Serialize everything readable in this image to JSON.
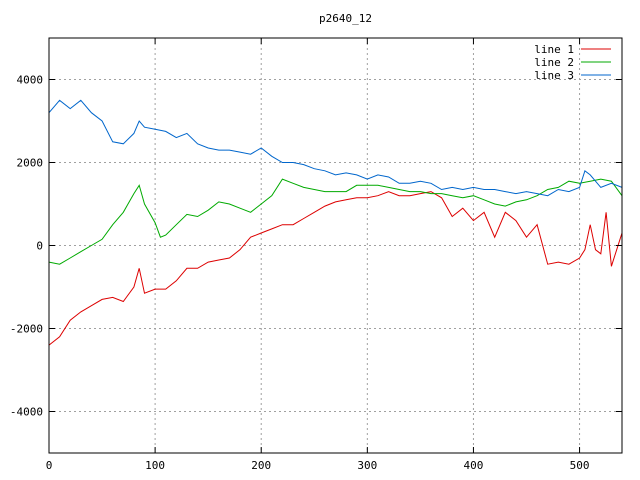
{
  "chart_data": {
    "type": "line",
    "title": "p2640_12",
    "xlabel": "",
    "ylabel": "",
    "xlim": [
      0,
      540
    ],
    "ylim": [
      -5000,
      5000
    ],
    "x_ticks": [
      0,
      100,
      200,
      300,
      400,
      500
    ],
    "x_tick_labels": [
      "0",
      "100",
      "200",
      "300",
      "400",
      "500"
    ],
    "y_ticks": [
      -4000,
      -2000,
      0,
      2000,
      4000
    ],
    "y_tick_labels": [
      "-4000",
      "-2000",
      "0",
      "2000",
      "4000"
    ],
    "grid": true,
    "legend_position": "top-right",
    "series": [
      {
        "name": "line 1",
        "color": "#dd0000",
        "x": [
          0,
          10,
          20,
          30,
          40,
          50,
          60,
          70,
          80,
          85,
          90,
          100,
          110,
          120,
          130,
          140,
          150,
          160,
          170,
          180,
          190,
          200,
          210,
          220,
          230,
          240,
          250,
          260,
          270,
          280,
          290,
          300,
          310,
          320,
          330,
          340,
          350,
          360,
          370,
          380,
          390,
          400,
          410,
          420,
          430,
          440,
          450,
          460,
          470,
          480,
          490,
          500,
          505,
          510,
          515,
          520,
          525,
          530,
          535,
          540
        ],
        "y": [
          -2400,
          -2200,
          -1800,
          -1600,
          -1450,
          -1300,
          -1250,
          -1350,
          -1000,
          -550,
          -1150,
          -1050,
          -1050,
          -850,
          -550,
          -550,
          -400,
          -350,
          -300,
          -100,
          200,
          300,
          400,
          500,
          500,
          650,
          800,
          950,
          1050,
          1100,
          1150,
          1150,
          1200,
          1300,
          1200,
          1200,
          1250,
          1300,
          1150,
          700,
          900,
          600,
          800,
          200,
          800,
          600,
          200,
          500,
          -450,
          -400,
          -450,
          -300,
          -100,
          500,
          -100,
          -200,
          800,
          -500,
          -100,
          300
        ]
      },
      {
        "name": "line 2",
        "color": "#00aa00",
        "x": [
          0,
          10,
          20,
          30,
          40,
          50,
          60,
          70,
          80,
          85,
          90,
          100,
          105,
          110,
          120,
          130,
          140,
          150,
          160,
          170,
          180,
          190,
          200,
          210,
          220,
          230,
          240,
          250,
          260,
          270,
          280,
          290,
          300,
          310,
          320,
          330,
          340,
          350,
          360,
          370,
          380,
          390,
          400,
          410,
          420,
          430,
          440,
          450,
          460,
          470,
          480,
          490,
          500,
          510,
          520,
          530,
          540
        ],
        "y": [
          -400,
          -450,
          -300,
          -150,
          0,
          150,
          500,
          800,
          1250,
          1450,
          1000,
          550,
          200,
          250,
          500,
          750,
          700,
          850,
          1050,
          1000,
          900,
          800,
          1000,
          1200,
          1600,
          1500,
          1400,
          1350,
          1300,
          1300,
          1300,
          1450,
          1450,
          1450,
          1400,
          1350,
          1300,
          1300,
          1250,
          1250,
          1200,
          1150,
          1200,
          1100,
          1000,
          950,
          1050,
          1100,
          1200,
          1350,
          1400,
          1550,
          1500,
          1550,
          1600,
          1550,
          1200
        ]
      },
      {
        "name": "line 3",
        "color": "#0066cc",
        "x": [
          0,
          10,
          20,
          30,
          40,
          50,
          60,
          70,
          80,
          85,
          90,
          100,
          110,
          120,
          130,
          140,
          150,
          160,
          170,
          180,
          190,
          200,
          210,
          220,
          230,
          240,
          250,
          260,
          270,
          280,
          290,
          300,
          310,
          320,
          330,
          340,
          350,
          360,
          370,
          380,
          390,
          400,
          410,
          420,
          430,
          440,
          450,
          460,
          470,
          480,
          490,
          500,
          505,
          510,
          520,
          530,
          540
        ],
        "y": [
          3200,
          3500,
          3300,
          3500,
          3200,
          3000,
          2500,
          2450,
          2700,
          3000,
          2850,
          2800,
          2750,
          2600,
          2700,
          2450,
          2350,
          2300,
          2300,
          2250,
          2200,
          2350,
          2150,
          2000,
          2000,
          1950,
          1850,
          1800,
          1700,
          1750,
          1700,
          1600,
          1700,
          1650,
          1500,
          1500,
          1550,
          1500,
          1350,
          1400,
          1350,
          1400,
          1350,
          1350,
          1300,
          1250,
          1300,
          1250,
          1200,
          1350,
          1300,
          1400,
          1800,
          1700,
          1400,
          1500,
          1400
        ]
      }
    ]
  }
}
